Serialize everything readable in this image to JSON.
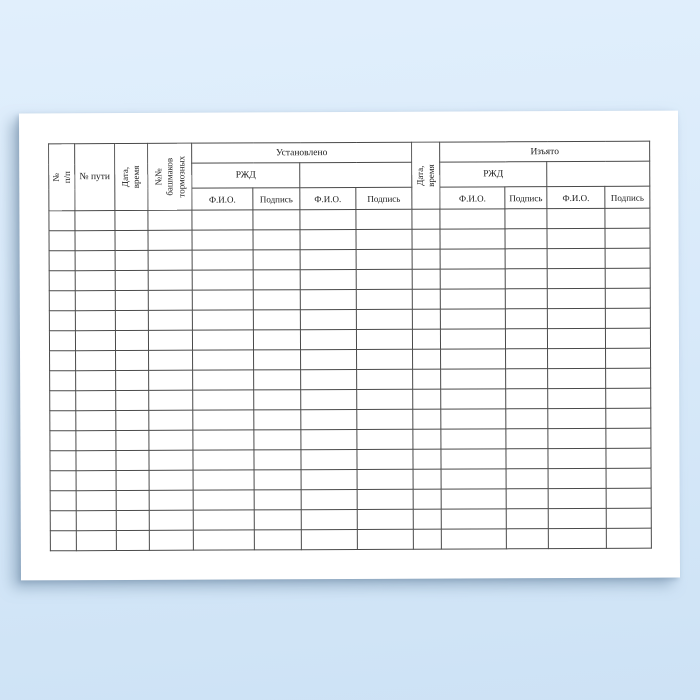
{
  "colors": {
    "background_top": "#e1effc",
    "background_bottom": "#cde2f5",
    "page": "#ffffff",
    "table_border": "#4a4a4a",
    "text": "#1c1c1c"
  },
  "table": {
    "headers": {
      "row_number": "№ п/п",
      "track_number": "№ пути",
      "date_time_installed": "Дата,\nвремя",
      "brake_shoe_numbers": "№№\nбашмаков\nтормозных",
      "installed_group": "Установлено",
      "rzd_installed": "РЖД",
      "date_time_removed": "Дата,\nвремя",
      "removed_group": "Изъято",
      "rzd_removed": "РЖД"
    },
    "sub_columns": [
      "Ф.И.О.",
      "Подпись",
      "Ф.И.О.",
      "Подпись",
      "Ф.И.О.",
      "Подпись",
      "Ф.И.О.",
      "Подпись"
    ],
    "body": {
      "row_count": 17,
      "column_count": 13
    }
  }
}
